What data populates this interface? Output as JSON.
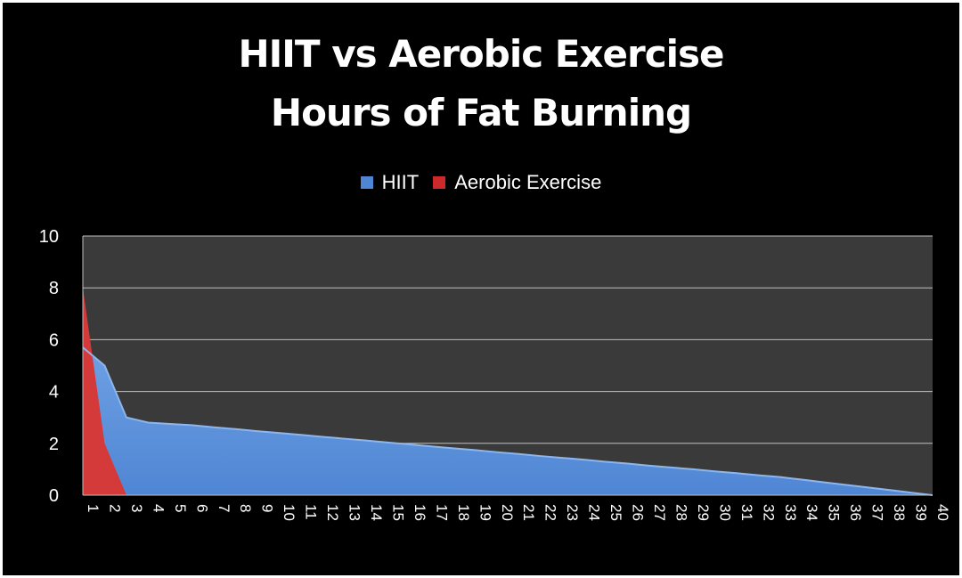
{
  "chart_data": {
    "type": "area",
    "title": [
      "HIIT vs Aerobic Exercise",
      "Hours of Fat Burning"
    ],
    "xlabel": "",
    "ylabel": "",
    "ylim": [
      0,
      10
    ],
    "yticks": [
      "0",
      "2",
      "4",
      "6",
      "8",
      "10"
    ],
    "x": [
      "1",
      "2",
      "3",
      "4",
      "5",
      "6",
      "7",
      "8",
      "9",
      "10",
      "11",
      "12",
      "13",
      "14",
      "15",
      "16",
      "17",
      "18",
      "19",
      "20",
      "21",
      "22",
      "23",
      "24",
      "25",
      "26",
      "27",
      "28",
      "29",
      "30",
      "31",
      "32",
      "33",
      "34",
      "35",
      "36",
      "37",
      "38",
      "39",
      "40"
    ],
    "grid": true,
    "legend": "top-center",
    "series": [
      {
        "name": "HIIT",
        "color": "#4f86d4",
        "values": [
          5.7,
          5.0,
          3.0,
          2.8,
          2.75,
          2.7,
          2.62,
          2.55,
          2.47,
          2.4,
          2.33,
          2.25,
          2.18,
          2.11,
          2.03,
          1.96,
          1.88,
          1.81,
          1.74,
          1.66,
          1.59,
          1.51,
          1.44,
          1.37,
          1.29,
          1.22,
          1.14,
          1.07,
          1.0,
          0.92,
          0.85,
          0.77,
          0.7,
          0.6,
          0.5,
          0.4,
          0.3,
          0.2,
          0.1,
          0.0
        ]
      },
      {
        "name": "Aerobic Exercise",
        "color": "#cc2a2a",
        "values": [
          8.0,
          2.0,
          0.0,
          0,
          0,
          0,
          0,
          0,
          0,
          0,
          0,
          0,
          0,
          0,
          0,
          0,
          0,
          0,
          0,
          0,
          0,
          0,
          0,
          0,
          0,
          0,
          0,
          0,
          0,
          0,
          0,
          0,
          0,
          0,
          0,
          0,
          0,
          0,
          0,
          0
        ]
      }
    ]
  },
  "colors": {
    "background": "#000000",
    "plot_area": "#3a3a3a",
    "grid": "#bfbfbf",
    "text": "#ffffff"
  }
}
